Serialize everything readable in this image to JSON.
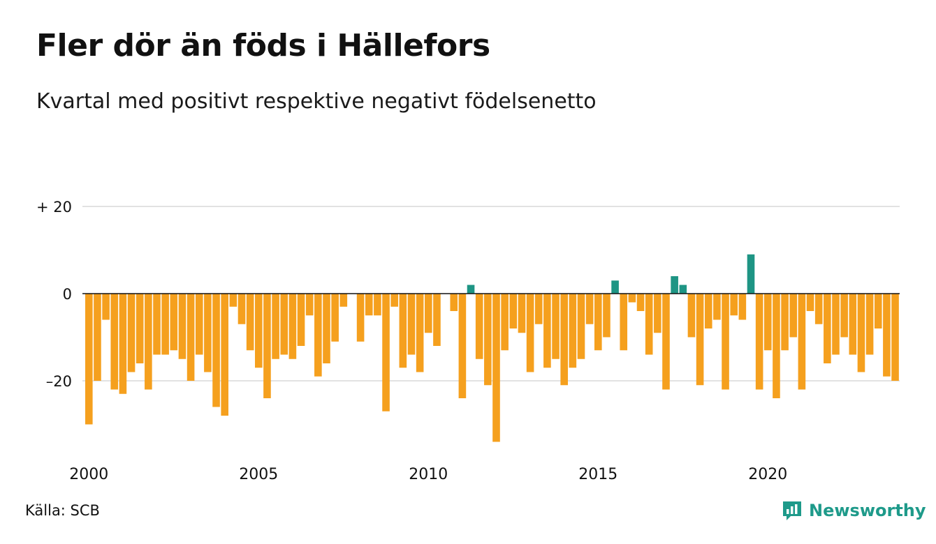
{
  "title": "Fler dör än föds i Hällefors",
  "subtitle": "Kvartal med positivt respektive negativt födelsenetto",
  "source": "Källa: SCB",
  "brand": "Newsworthy",
  "colors": {
    "negative": "#f5a01e",
    "positive": "#1e9584",
    "grid": "#e2e2e2",
    "zero": "#111111",
    "brand": "#1e9a8a"
  },
  "chart_data": {
    "type": "bar",
    "ylim": [
      -36,
      22
    ],
    "y_ticks": [
      {
        "value": 20,
        "label": "+ 20"
      },
      {
        "value": 0,
        "label": "0"
      },
      {
        "value": -20,
        "label": "–20"
      }
    ],
    "x_ticks": [
      {
        "value": 2000,
        "label": "2000"
      },
      {
        "value": 2005,
        "label": "2005"
      },
      {
        "value": 2010,
        "label": "2010"
      },
      {
        "value": 2015,
        "label": "2015"
      },
      {
        "value": 2020,
        "label": "2020"
      }
    ],
    "x_start": 2000,
    "grid": true,
    "values": [
      -30,
      -20,
      -6,
      -22,
      -23,
      -18,
      -16,
      -22,
      -14,
      -14,
      -13,
      -15,
      -20,
      -14,
      -18,
      -26,
      -28,
      -3,
      -7,
      -13,
      -17,
      -24,
      -15,
      -14,
      -15,
      -12,
      -5,
      -19,
      -16,
      -11,
      -3,
      0,
      -11,
      -5,
      -5,
      -27,
      -3,
      -17,
      -14,
      -18,
      -9,
      -12,
      0,
      -4,
      -24,
      2,
      -15,
      -21,
      -34,
      -13,
      -8,
      -9,
      -18,
      -7,
      -17,
      -15,
      -21,
      -17,
      -15,
      -7,
      -13,
      -10,
      3,
      -13,
      -2,
      -4,
      -14,
      -9,
      -22,
      4,
      2,
      -10,
      -21,
      -8,
      -6,
      -22,
      -5,
      -6,
      9,
      -22,
      -13,
      -24,
      -13,
      -10,
      -22,
      -4,
      -7,
      -16,
      -14,
      -10,
      -14,
      -18,
      -14,
      -8,
      -19,
      -20
    ]
  }
}
